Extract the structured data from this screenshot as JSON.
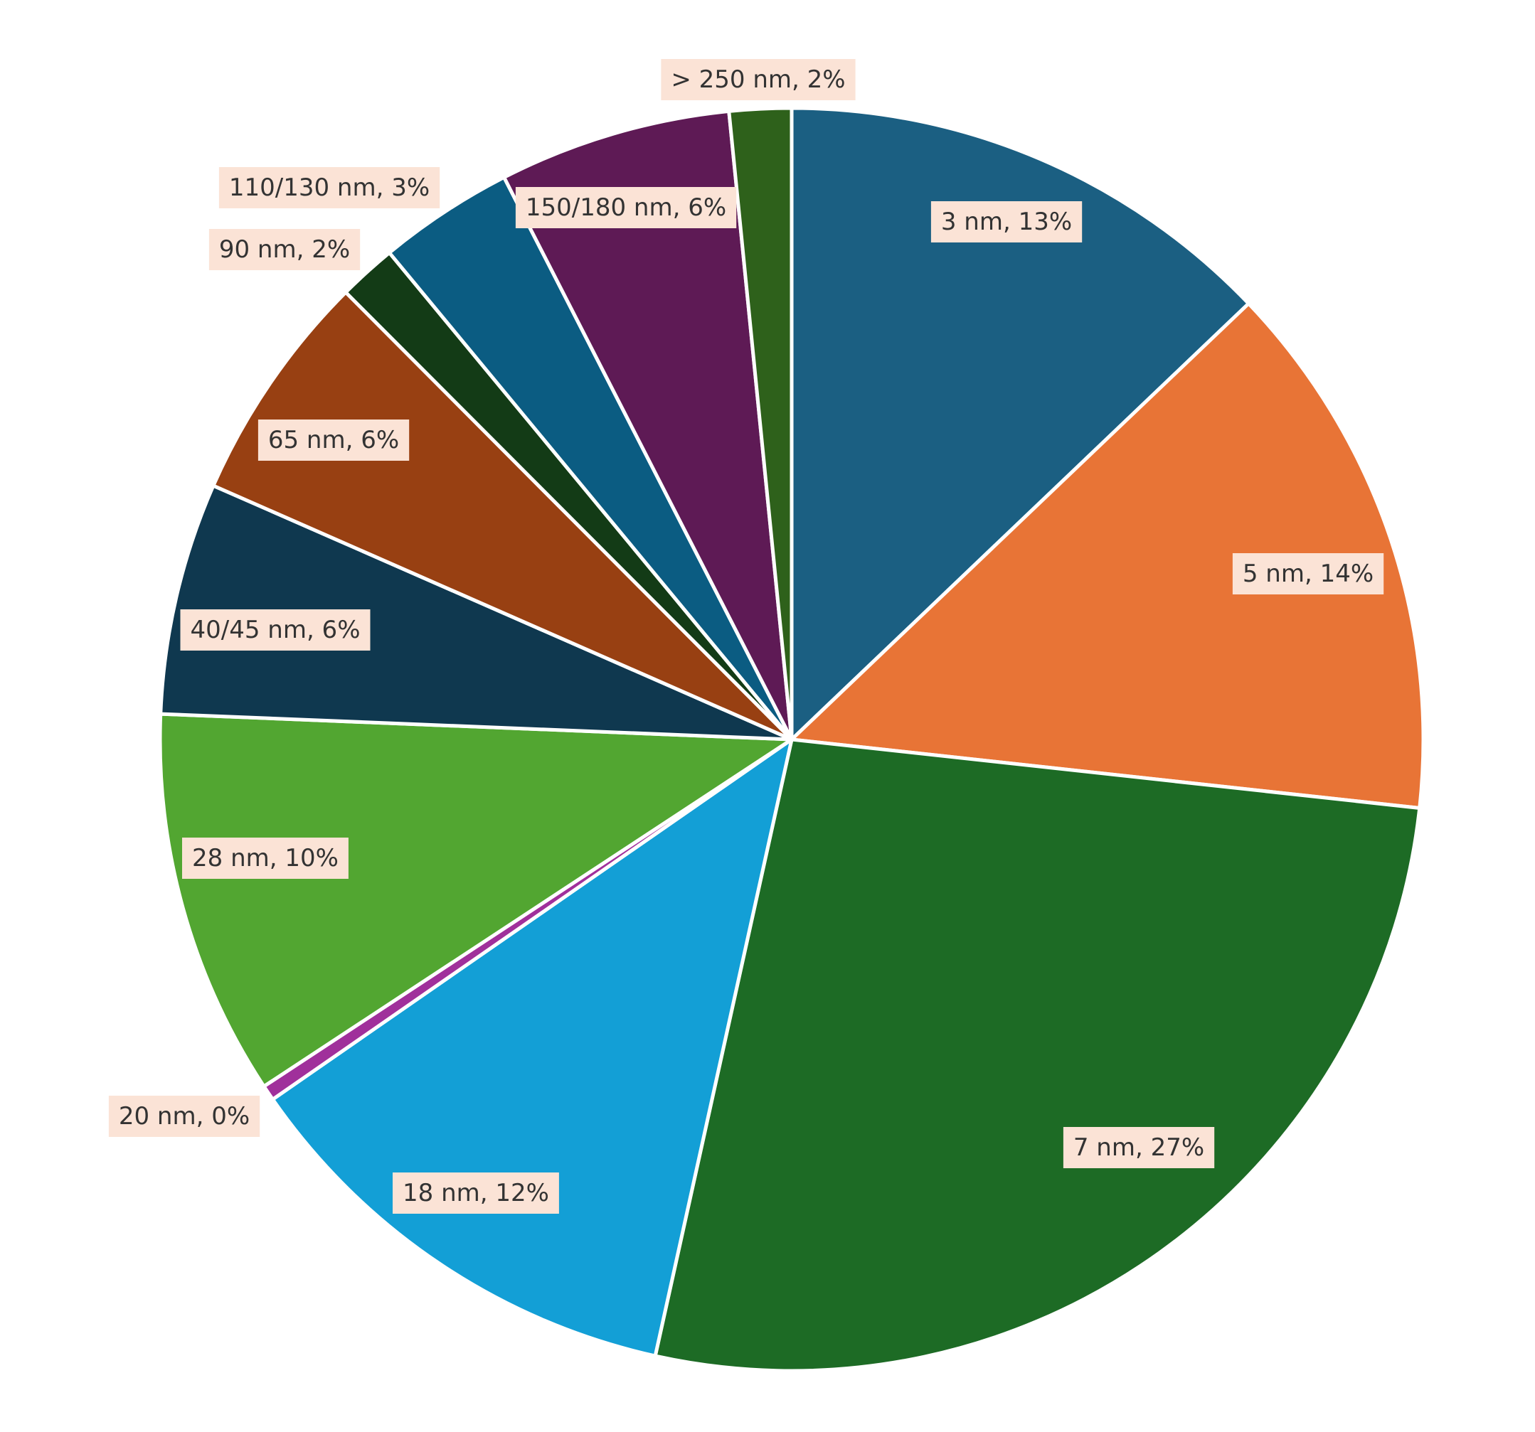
{
  "chart_data": {
    "type": "pie",
    "title": "",
    "start_angle_deg": 0,
    "direction": "clockwise",
    "legend": "none",
    "slices": [
      {
        "category": "3 nm",
        "value": 13,
        "label": "3 nm, 13%",
        "color": "#1b5f82"
      },
      {
        "category": "5 nm",
        "value": 14,
        "label": "5 nm, 14%",
        "color": "#e87436"
      },
      {
        "category": "7 nm",
        "value": 27,
        "label": "7 nm, 27%",
        "color": "#1d6b25"
      },
      {
        "category": "18 nm",
        "value": 12,
        "label": "18 nm, 12%",
        "color": "#139fd6"
      },
      {
        "category": "20 nm",
        "value": 0.4,
        "label": "20 nm, 0%",
        "color": "#a0309b"
      },
      {
        "category": "28 nm",
        "value": 10,
        "label": "28 nm, 10%",
        "color": "#52a631"
      },
      {
        "category": "40/45 nm",
        "value": 6,
        "label": "40/45 nm, 6%",
        "color": "#0f384f"
      },
      {
        "category": "65 nm",
        "value": 6,
        "label": "65 nm, 6%",
        "color": "#984012"
      },
      {
        "category": "90 nm",
        "value": 1.5,
        "label": "90 nm, 2%",
        "color": "#133b16"
      },
      {
        "category": "110/130 nm",
        "value": 3.5,
        "label": "110/130 nm, 3%",
        "color": "#0b5c82"
      },
      {
        "category": "150/180 nm",
        "value": 6,
        "label": "150/180 nm, 6%",
        "color": "#5e1a55"
      },
      {
        "category": "> 250 nm",
        "value": 1.6,
        "label": "> 250 nm, 2%",
        "color": "#2e611b"
      }
    ]
  }
}
